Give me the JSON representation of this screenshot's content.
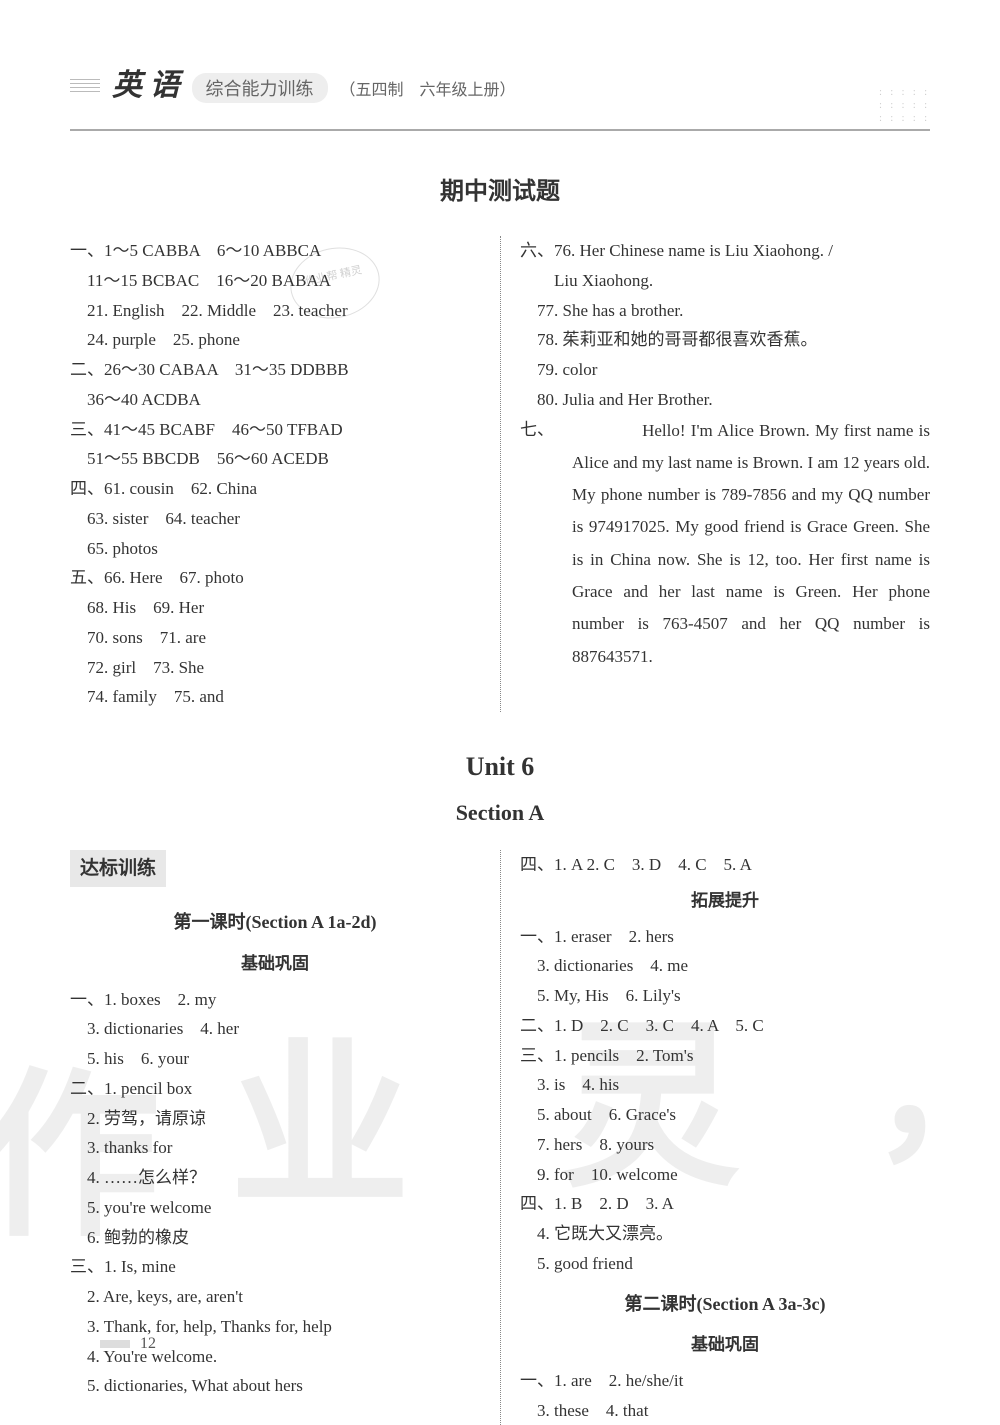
{
  "header": {
    "subject": "英 语",
    "book_title": "综合能力训练",
    "book_sub": "（五四制　六年级上册）",
    "dots": ": : : : :\n: : : : :\n: : : : :"
  },
  "midterm": {
    "title": "期中测试题",
    "left": [
      "一、1～5 CABBA　6～10 ABBCA",
      "　11～15 BCBAC　16～20 BABAA",
      "　21. English　22. Middle　23. teacher",
      "　24. purple　25. phone",
      "二、26～30 CABAA　31～35 DDBBB",
      "　36～40 ACDBA",
      "三、41～45 BCABF　46～50 TFBAD",
      "　51～55 BBCDB　56～60 ACEDB",
      "四、61. cousin　62. China",
      "　63. sister　64. teacher",
      "　65. photos",
      "五、66. Here　67. photo",
      "　68. His　69. Her",
      "　70. sons　71. are",
      "　72. girl　73. She",
      "　74. family　75. and"
    ],
    "right_lines": [
      "六、76. Her Chinese name is Liu Xiaohong. /",
      "　　Liu Xiaohong.",
      "　77. She has a brother.",
      "　78. 茱莉亚和她的哥哥都很喜欢香蕉。",
      "　79. color",
      "　80. Julia and Her Brother."
    ],
    "essay_label": "七、",
    "essay": "　　Hello! I'm Alice Brown. My first name is Alice and my last name is Brown. I am 12 years old. My phone number is 789-7856 and my QQ number is 974917025. My good friend is Grace Green. She is in China now. She is 12, too. Her first name is Grace and her last name is Green. Her phone number is 763-4507 and her QQ number is 887643571."
  },
  "unit": {
    "title": "Unit 6",
    "section": "Section A",
    "training": "达标训练",
    "lesson1": "第一课时(Section A 1a-2d)",
    "basic": "基础巩固",
    "left_basic": [
      "一、1. boxes　2. my",
      "　3. dictionaries　4. her",
      "　5. his　6. your",
      "二、1. pencil box",
      "　2. 劳驾，请原谅",
      "　3. thanks for",
      "　4. ……怎么样？",
      "　5. you're welcome",
      "　6. 鲍勃的橡皮",
      "三、1. Is, mine",
      "　2. Are, keys, are, aren't",
      "　3. Thank, for, help, Thanks for, help",
      "　4. You're welcome.",
      "　5. dictionaries, What about hers"
    ],
    "right_top": [
      "四、1. A  2. C　3. D　4. C　5. A"
    ],
    "expand": "拓展提升",
    "right_expand": [
      "一、1. eraser　2. hers",
      "　3. dictionaries　4. me",
      "　5. My, His　6. Lily's",
      "二、1. D　2. C　3. C　4. A　5. C",
      "三、1. pencils　2. Tom's",
      "　3. is　4. his",
      "　5. about　6. Grace's",
      "　7. hers　8. yours",
      "　9. for　10. welcome",
      "四、1. B　2. D　3. A",
      "　4. 它既大又漂亮。",
      "　5. good friend"
    ],
    "lesson2": "第二课时(Section A 3a-3c)",
    "basic2": "基础巩固",
    "right_basic2": [
      "一、1. are　2. he/she/it",
      "　3. these　4. that"
    ]
  },
  "page": "12",
  "stamp": "作业帮\n精灵"
}
